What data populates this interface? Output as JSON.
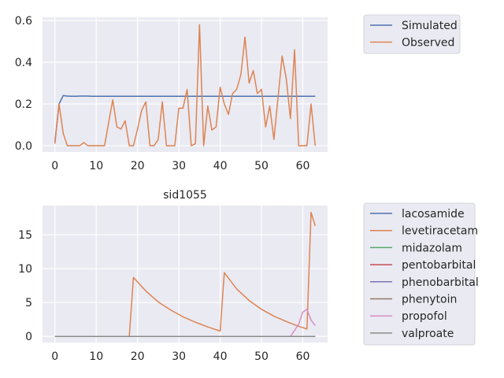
{
  "chart_data": [
    {
      "type": "line",
      "title": "",
      "xlabel": "",
      "ylabel": "",
      "xlim": [
        -3,
        66
      ],
      "ylim": [
        -0.03,
        0.615
      ],
      "xticks": [
        0,
        10,
        20,
        30,
        40,
        50,
        60
      ],
      "yticks": [
        0.0,
        0.2,
        0.4,
        0.6
      ],
      "ytick_labels": [
        "0.0",
        "0.2",
        "0.4",
        "0.6"
      ],
      "grid": true,
      "legend_position": "outside-right-top",
      "series": [
        {
          "name": "Simulated",
          "color": "#4c72b0",
          "x": [
            0,
            1,
            2,
            3,
            4,
            5,
            6,
            7,
            8,
            9,
            10,
            11,
            12,
            13,
            14,
            15,
            16,
            17,
            18,
            19,
            20,
            21,
            22,
            23,
            24,
            25,
            26,
            27,
            28,
            29,
            30,
            31,
            32,
            33,
            34,
            35,
            36,
            37,
            38,
            39,
            40,
            41,
            42,
            43,
            44,
            45,
            46,
            47,
            48,
            49,
            50,
            51,
            52,
            53,
            54,
            55,
            56,
            57,
            58,
            59,
            60,
            61,
            62,
            63
          ],
          "y": [
            0.02,
            0.2,
            0.24,
            0.238,
            0.237,
            0.237,
            0.238,
            0.238,
            0.238,
            0.237,
            0.237,
            0.237,
            0.237,
            0.237,
            0.237,
            0.237,
            0.237,
            0.237,
            0.237,
            0.237,
            0.237,
            0.237,
            0.237,
            0.237,
            0.237,
            0.237,
            0.237,
            0.237,
            0.237,
            0.237,
            0.237,
            0.237,
            0.237,
            0.237,
            0.237,
            0.237,
            0.237,
            0.237,
            0.237,
            0.237,
            0.237,
            0.237,
            0.237,
            0.237,
            0.237,
            0.237,
            0.237,
            0.237,
            0.237,
            0.237,
            0.237,
            0.237,
            0.237,
            0.237,
            0.237,
            0.237,
            0.237,
            0.237,
            0.237,
            0.237,
            0.237,
            0.237,
            0.237,
            0.237
          ]
        },
        {
          "name": "Observed",
          "color": "#dd8452",
          "x": [
            0,
            1,
            2,
            3,
            4,
            5,
            6,
            7,
            8,
            9,
            10,
            11,
            12,
            13,
            14,
            15,
            16,
            17,
            18,
            19,
            20,
            21,
            22,
            23,
            24,
            25,
            26,
            27,
            28,
            29,
            30,
            31,
            32,
            33,
            34,
            35,
            36,
            37,
            38,
            39,
            40,
            41,
            42,
            43,
            44,
            45,
            46,
            47,
            48,
            49,
            50,
            51,
            52,
            53,
            54,
            55,
            56,
            57,
            58,
            59,
            60,
            61,
            62,
            63
          ],
          "y": [
            0.01,
            0.2,
            0.06,
            0.0,
            0.0,
            0.0,
            0.0,
            0.015,
            0.0,
            0.0,
            0.0,
            0.0,
            0.0,
            0.11,
            0.22,
            0.09,
            0.08,
            0.12,
            0.0,
            0.0,
            0.08,
            0.17,
            0.21,
            0.0,
            0.0,
            0.03,
            0.21,
            0.0,
            0.0,
            0.0,
            0.18,
            0.18,
            0.27,
            0.0,
            0.01,
            0.58,
            0.0,
            0.19,
            0.075,
            0.09,
            0.28,
            0.2,
            0.15,
            0.25,
            0.27,
            0.34,
            0.52,
            0.3,
            0.36,
            0.25,
            0.27,
            0.09,
            0.19,
            0.03,
            0.23,
            0.43,
            0.32,
            0.13,
            0.46,
            0.0,
            0.0,
            0.0,
            0.2,
            0.0
          ]
        }
      ]
    },
    {
      "type": "line",
      "title": "sid1055",
      "xlabel": "",
      "ylabel": "",
      "xlim": [
        -3,
        66
      ],
      "ylim": [
        -0.9,
        19.3
      ],
      "xticks": [
        0,
        10,
        20,
        30,
        40,
        50,
        60
      ],
      "yticks": [
        0,
        5,
        10,
        15
      ],
      "ytick_labels": [
        "0",
        "5",
        "10",
        "15"
      ],
      "grid": true,
      "legend_position": "outside-right-top",
      "series": [
        {
          "name": "lacosamide",
          "color": "#4c72b0",
          "x": [
            0,
            63
          ],
          "y": [
            0,
            0
          ]
        },
        {
          "name": "levetiracetam",
          "color": "#dd8452",
          "x": [
            0,
            18,
            19,
            22,
            25,
            28,
            31,
            34,
            37,
            40,
            41,
            44,
            47,
            50,
            53,
            56,
            59,
            61,
            62,
            63
          ],
          "y": [
            0,
            0,
            8.7,
            6.7,
            5.1,
            3.9,
            2.9,
            2.1,
            1.4,
            0.8,
            9.4,
            7.0,
            5.3,
            4.0,
            3.0,
            2.2,
            1.5,
            1.1,
            18.3,
            16.3
          ]
        },
        {
          "name": "midazolam",
          "color": "#55a868",
          "x": [
            0,
            63
          ],
          "y": [
            0,
            0
          ]
        },
        {
          "name": "pentobarbital",
          "color": "#c44e52",
          "x": [
            0,
            63
          ],
          "y": [
            0,
            0
          ]
        },
        {
          "name": "phenobarbital",
          "color": "#8172b3",
          "x": [
            0,
            63
          ],
          "y": [
            0,
            0
          ]
        },
        {
          "name": "phenytoin",
          "color": "#937860",
          "x": [
            0,
            63
          ],
          "y": [
            0,
            0
          ]
        },
        {
          "name": "propofol",
          "color": "#da8bc3",
          "x": [
            0,
            57,
            58,
            59,
            60,
            61,
            62,
            63
          ],
          "y": [
            0,
            0,
            0.9,
            1.8,
            3.6,
            4.0,
            2.4,
            1.6
          ]
        },
        {
          "name": "valproate",
          "color": "#8c8c8c",
          "x": [
            0,
            63
          ],
          "y": [
            0,
            0
          ]
        }
      ]
    }
  ]
}
